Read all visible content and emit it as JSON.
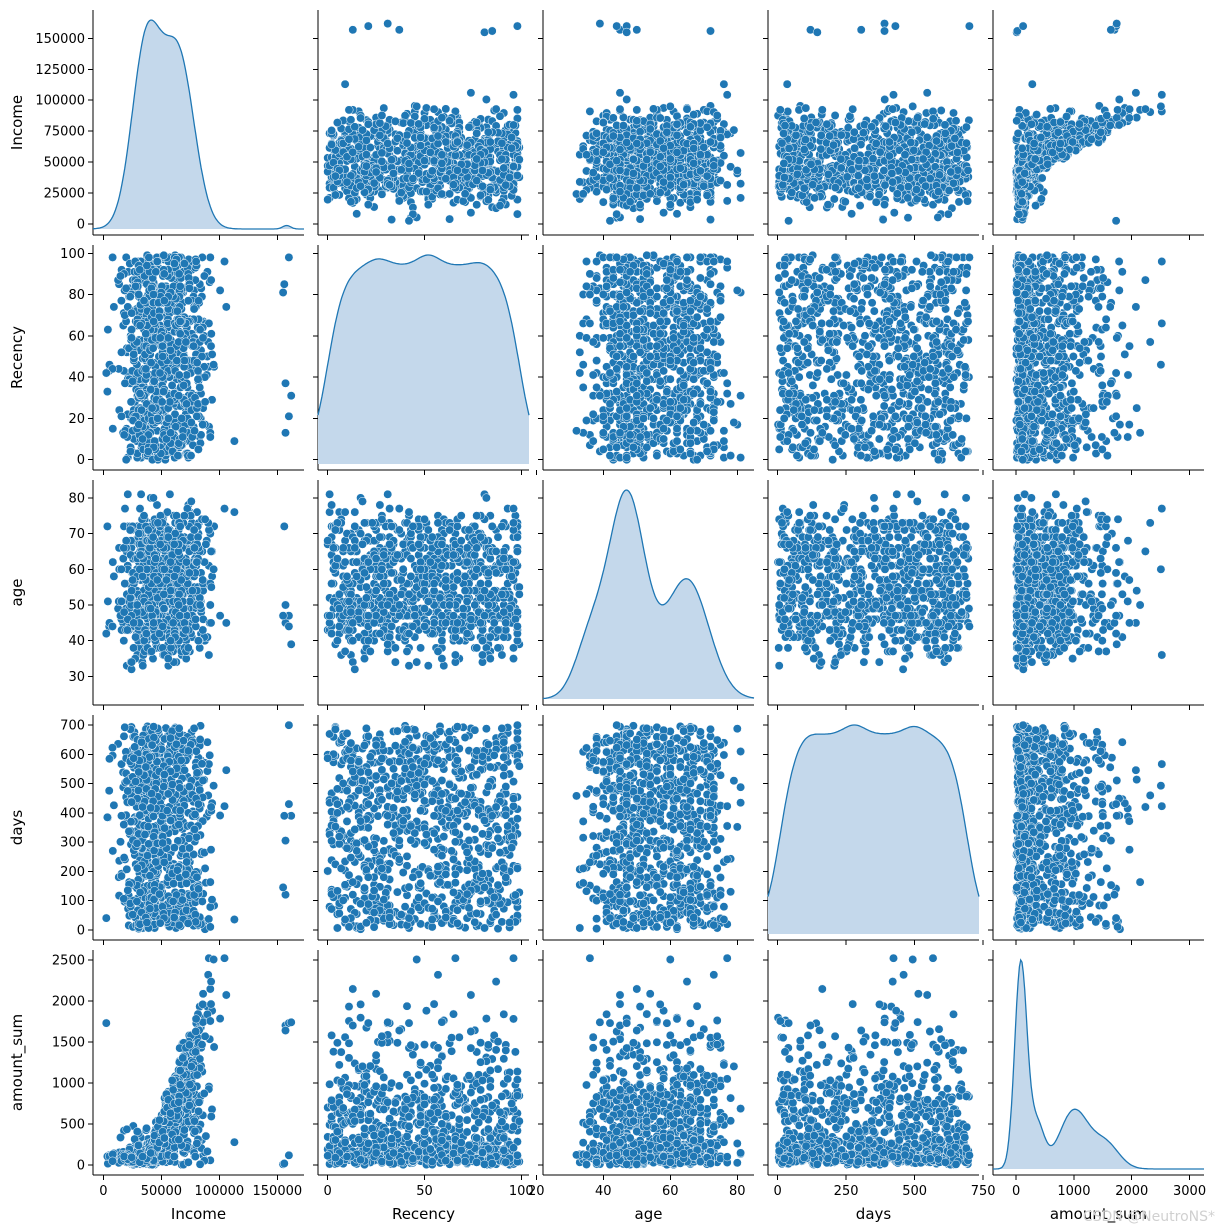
{
  "chart_data": {
    "type": "pairplot",
    "title": "",
    "variables": [
      "Income",
      "Recency",
      "age",
      "days",
      "amount_sum"
    ],
    "diag_kind": "kde",
    "plot_kind": "scatter",
    "point_color": "#1f77b4",
    "point_edge_color": "#ffffff",
    "kde_fill_color": "#c4d8eb",
    "kde_line_color": "#1f77b4",
    "axes": {
      "Income": {
        "label": "Income",
        "range": [
          -9000,
          173000
        ],
        "ticks": [
          0,
          25000,
          50000,
          75000,
          100000,
          125000,
          150000
        ],
        "tick_labels": [
          "0",
          "25000",
          "50000",
          "75000",
          "100000",
          "125000",
          "150000"
        ],
        "x_ticks": [
          0,
          50000,
          100000,
          150000
        ],
        "x_tick_labels": [
          "0",
          "50000",
          "100000",
          "150000"
        ],
        "kde_peaks": [
          {
            "x": 37000,
            "height": 0.94
          },
          {
            "x": 65000,
            "height": 0.87
          },
          {
            "x": 158000,
            "height": 0.018
          }
        ],
        "kde_peak_widths": [
          12500,
          13500,
          3500
        ]
      },
      "Recency": {
        "label": "Recency",
        "range": [
          -5,
          104
        ],
        "ticks": [
          0,
          20,
          40,
          60,
          80,
          100
        ],
        "tick_labels": [
          "0",
          "20",
          "40",
          "60",
          "80",
          "100"
        ],
        "x_ticks": [
          0,
          50,
          100
        ],
        "x_tick_labels": [
          "0",
          "50",
          "100"
        ],
        "kde_plateau": [
          0,
          99
        ],
        "kde_bumps": [
          {
            "x": 26,
            "height": 0.03
          },
          {
            "x": 52,
            "height": 0.045
          },
          {
            "x": 80,
            "height": 0.02
          }
        ]
      },
      "age": {
        "label": "age",
        "range": [
          22,
          85
        ],
        "ticks": [
          30,
          40,
          50,
          60,
          70,
          80
        ],
        "tick_labels": [
          "30",
          "40",
          "50",
          "60",
          "70",
          "80"
        ],
        "x_ticks": [
          20,
          40,
          60,
          80
        ],
        "x_tick_labels": [
          "20",
          "40",
          "60",
          "80"
        ],
        "kde_peaks": [
          {
            "x": 47,
            "height": 0.82
          },
          {
            "x": 65,
            "height": 0.48
          },
          {
            "x": 36,
            "height": 0.22
          }
        ],
        "kde_peak_widths": [
          5.5,
          6.5,
          4.5
        ]
      },
      "days": {
        "label": "days",
        "range": [
          -35,
          735
        ],
        "ticks": [
          0,
          100,
          200,
          300,
          400,
          500,
          600,
          700
        ],
        "tick_labels": [
          "0",
          "100",
          "200",
          "300",
          "400",
          "500",
          "600",
          "700"
        ],
        "x_ticks": [
          0,
          250,
          500,
          750
        ],
        "x_tick_labels": [
          "0",
          "250",
          "500",
          "750"
        ],
        "kde_plateau": [
          10,
          690
        ],
        "kde_bumps": [
          {
            "x": 100,
            "height": 0.02
          },
          {
            "x": 280,
            "height": 0.04
          },
          {
            "x": 500,
            "height": 0.035
          }
        ]
      },
      "amount_sum": {
        "label": "amount_sum",
        "range": [
          -120,
          2620
        ],
        "ticks": [
          0,
          500,
          1000,
          1500,
          2000,
          2500
        ],
        "tick_labels": [
          "0",
          "500",
          "1000",
          "1500",
          "2000",
          "2500"
        ],
        "x_ticks": [
          0,
          1000,
          2000,
          3000
        ],
        "x_tick_labels": [
          "0",
          "1000",
          "2000",
          "3000"
        ],
        "x_range": [
          -400,
          3250
        ],
        "kde_peaks": [
          {
            "x": 80,
            "height": 0.98
          },
          {
            "x": 1000,
            "height": 0.28
          },
          {
            "x": 1550,
            "height": 0.12
          },
          {
            "x": 350,
            "height": 0.22
          }
        ],
        "kde_peak_widths": [
          105,
          250,
          230,
          130
        ]
      }
    },
    "distributions": {
      "Income": {
        "mixture": [
          {
            "mean": 37000,
            "sd": 12000,
            "weight": 0.5
          },
          {
            "mean": 65000,
            "sd": 13000,
            "weight": 0.5
          }
        ],
        "clip": [
          2000,
          106000
        ]
      },
      "Recency": {
        "uniform": [
          0,
          99
        ]
      },
      "age": {
        "mixture": [
          {
            "mean": 47,
            "sd": 6,
            "weight": 0.55
          },
          {
            "mean": 65,
            "sd": 6.5,
            "weight": 0.45
          }
        ],
        "clip": [
          25,
          81
        ]
      },
      "days": {
        "uniform": [
          2,
          698
        ]
      },
      "amount_sum_model": "increases with Income, right-skewed; range 5–2525"
    },
    "n_points": 900,
    "outliers": [
      {
        "Income": 157000,
        "Recency": 13,
        "age": 45,
        "days": 120,
        "amount_sum": 1700
      },
      {
        "Income": 160000,
        "Recency": 21,
        "age": 47,
        "days": 430,
        "amount_sum": 1730
      },
      {
        "Income": 162000,
        "Recency": 31,
        "age": 39,
        "days": 390,
        "amount_sum": 1740
      },
      {
        "Income": 157000,
        "Recency": 37,
        "age": 50,
        "days": 305,
        "amount_sum": 1640
      },
      {
        "Income": 155000,
        "Recency": 81,
        "age": 47,
        "days": 145,
        "amount_sum": 10
      },
      {
        "Income": 156000,
        "Recency": 85,
        "age": 72,
        "days": 390,
        "amount_sum": 20
      },
      {
        "Income": 160000,
        "Recency": 98,
        "age": 44,
        "days": 700,
        "amount_sum": 120
      },
      {
        "Income": 113000,
        "Recency": 9,
        "age": 76,
        "days": 35,
        "amount_sum": 280
      },
      {
        "Income": 2500,
        "Recency": 42,
        "age": 42,
        "days": 40,
        "amount_sum": 1730
      }
    ],
    "legend": "none"
  },
  "watermark": "CSDN @NeutroNS*"
}
